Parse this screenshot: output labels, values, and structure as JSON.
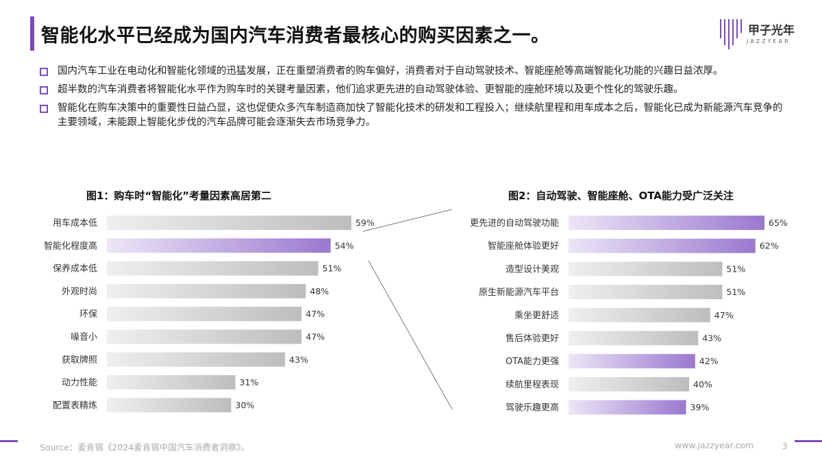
{
  "header": {
    "title": "智能化水平已经成为国内汽车消费者最核心的购买因素之一。",
    "logo_text": "甲子光年",
    "logo_sub": "JAZZYEAR"
  },
  "bullets": [
    "国内汽车工业在电动化和智能化领域的迅猛发展，正在重塑消费者的购车偏好，消费者对于自动驾驶技术、智能座舱等高端智能化功能的兴趣日益浓厚。",
    "超半数的汽车消费者将智能化水平作为购车时的关键考量因素，他们追求更先进的自动驾驶体验、更智能的座舱环境以及更个性化的驾驶乐趣。",
    "智能化在购车决策中的重要性日益凸显，这也促使众多汽车制造商加快了智能化技术的研发和工程投入；继续航里程和用车成本之后，智能化已成为新能源汽车竞争的主要领域，未能跟上智能化步伐的汽车品牌可能会逐渐失去市场竞争力。"
  ],
  "colors": {
    "accent": "#7b4bb8",
    "bar_gray": "#c8c8c8",
    "bar_purple": "#a98bd6"
  },
  "chart_data": [
    {
      "type": "bar",
      "orientation": "horizontal",
      "title": "图1：购车时“智能化”考量因素高居第二",
      "categories": [
        "用车成本低",
        "智能化程度高",
        "保养成本低",
        "外观时尚",
        "环保",
        "噪音小",
        "获取牌照",
        "动力性能",
        "配置表精炼"
      ],
      "values": [
        59,
        54,
        51,
        48,
        47,
        47,
        43,
        31,
        30
      ],
      "value_labels": [
        "59%",
        "54%",
        "51%",
        "48%",
        "47%",
        "47%",
        "43%",
        "31%",
        "30%"
      ],
      "highlighted": [
        "智能化程度高"
      ],
      "unit": "%"
    },
    {
      "type": "bar",
      "orientation": "horizontal",
      "title": "图2：自动驾驶、智能座舱、OTA能力受广泛关注",
      "categories": [
        "更先进的自动驾驶功能",
        "智能座舱体验更好",
        "造型设计美观",
        "原生新能源汽车平台",
        "乘坐更舒适",
        "售后体验更好",
        "OTA能力更强",
        "续航里程表现",
        "驾驶乐趣更高"
      ],
      "values": [
        65,
        62,
        51,
        51,
        47,
        43,
        42,
        40,
        39
      ],
      "value_labels": [
        "65%",
        "62%",
        "51%",
        "51%",
        "47%",
        "43%",
        "42%",
        "40%",
        "39%"
      ],
      "highlighted": [
        "更先进的自动驾驶功能",
        "智能座舱体验更好",
        "OTA能力更强",
        "驾驶乐趣更高"
      ],
      "unit": "%"
    }
  ],
  "footer": {
    "source": "Source：麦肯锡《2024麦肯锡中国汽车消费者洞察》。",
    "url": "www.jazzyear.com",
    "page": "3"
  }
}
